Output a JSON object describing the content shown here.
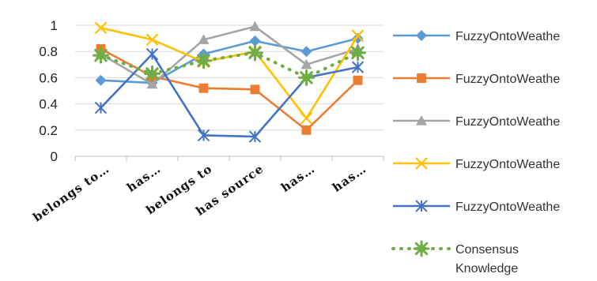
{
  "chart_data": {
    "type": "line",
    "title": "",
    "xlabel": "",
    "ylabel": "",
    "ylim": [
      0,
      1
    ],
    "yticks": [
      "0",
      "0.2",
      "0.4",
      "0.6",
      "0.8",
      "1"
    ],
    "categories": [
      "belongs to…",
      "has…",
      "belongs to",
      "has source",
      "has…",
      "has…"
    ],
    "grid": true,
    "legend_position": "right",
    "series": [
      {
        "name": "FuzzyOntoWeathe",
        "color": "#5b9bd5",
        "marker": "diamond",
        "dashed": false,
        "values": [
          0.58,
          0.56,
          0.78,
          0.88,
          0.8,
          0.9
        ]
      },
      {
        "name": "FuzzyOntoWeathe",
        "color": "#ed7d31",
        "marker": "square",
        "dashed": false,
        "values": [
          0.82,
          0.61,
          0.52,
          0.51,
          0.2,
          0.58
        ]
      },
      {
        "name": "FuzzyOntoWeathe",
        "color": "#a5a5a5",
        "marker": "triangle",
        "dashed": false,
        "values": [
          0.78,
          0.55,
          0.89,
          0.99,
          0.7,
          0.82
        ]
      },
      {
        "name": "FuzzyOntoWeathe",
        "color": "#ffc000",
        "marker": "x",
        "dashed": false,
        "values": [
          0.98,
          0.89,
          0.72,
          0.8,
          0.29,
          0.92
        ]
      },
      {
        "name": "FuzzyOntoWeathe",
        "color": "#4472c4",
        "marker": "star",
        "dashed": false,
        "values": [
          0.37,
          0.78,
          0.16,
          0.15,
          0.6,
          0.68
        ]
      },
      {
        "name": "Consensus Knowledge",
        "color": "#70ad47",
        "marker": "asterisk",
        "dashed": true,
        "values": [
          0.77,
          0.63,
          0.73,
          0.79,
          0.6,
          0.79
        ]
      }
    ]
  }
}
